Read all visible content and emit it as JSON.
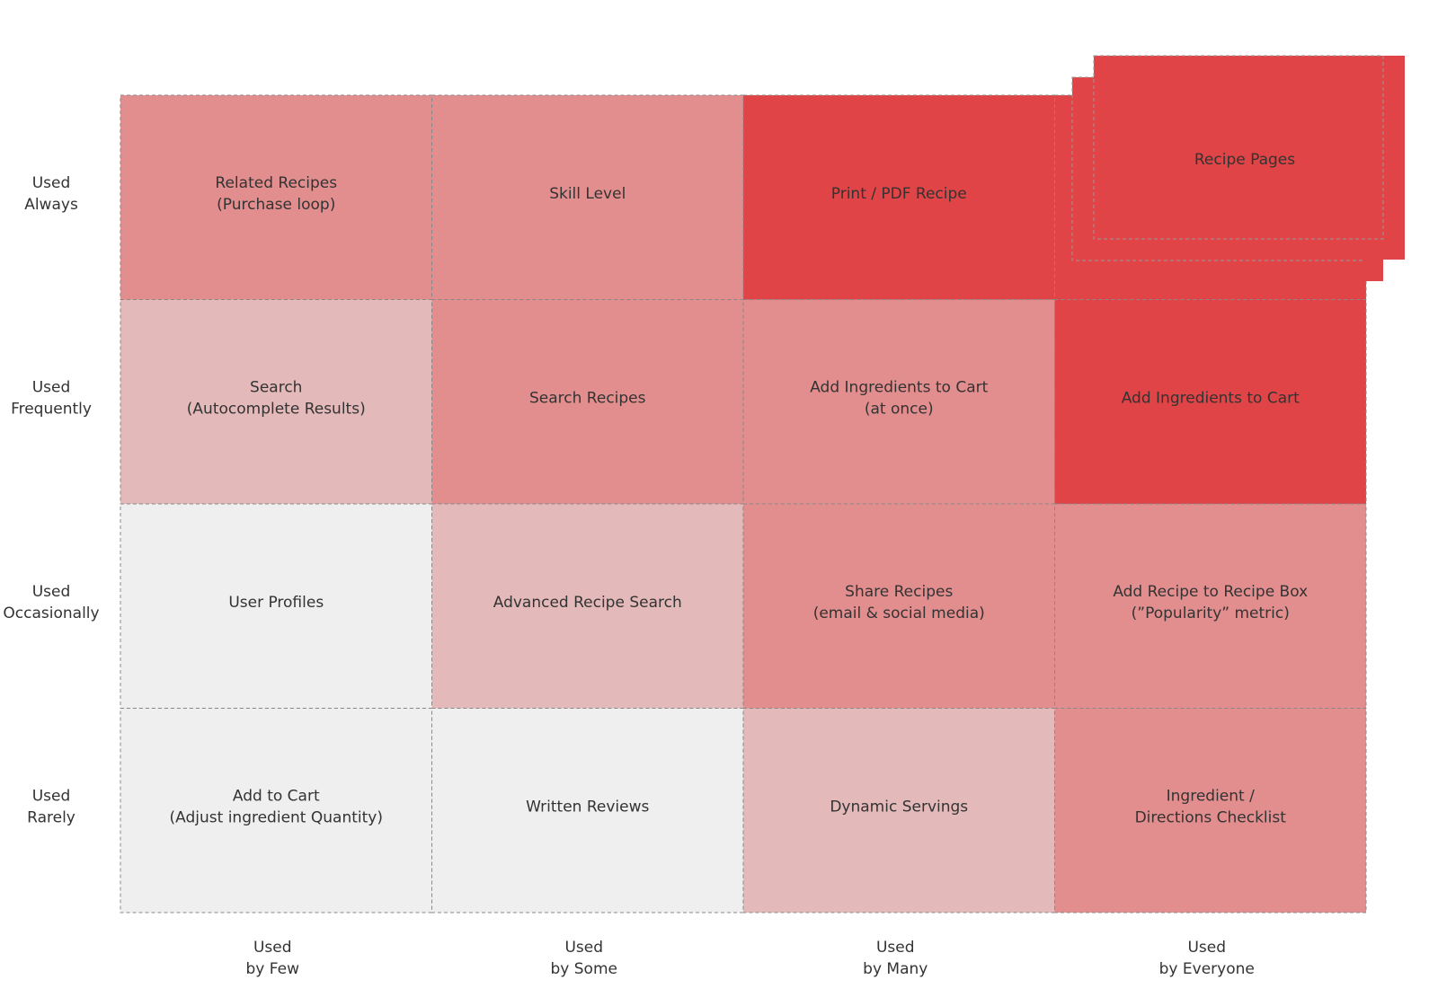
{
  "row_labels": [
    [
      "Used",
      "Always"
    ],
    [
      "Used",
      "Frequently"
    ],
    [
      "Used",
      "Occasionally"
    ],
    [
      "Used",
      "Rarely"
    ]
  ],
  "column_labels": [
    [
      "Used",
      "by Few"
    ],
    [
      "Used",
      "by Some"
    ],
    [
      "Used",
      "by Many"
    ],
    [
      "Used",
      "by Everyone"
    ]
  ],
  "cells": [
    [
      {
        "lines": [
          "Related Recipes",
          "(Purchase loop)"
        ],
        "color": "#e38e8e"
      },
      {
        "lines": [
          "Skill Level"
        ],
        "color": "#e38e8e"
      },
      {
        "lines": [
          "Print / PDF Recipe"
        ],
        "color": "#e04446"
      },
      {
        "lines": [
          "Recipe Pages"
        ],
        "color": "#e04446"
      }
    ],
    [
      {
        "lines": [
          "Search",
          "(Autocomplete Results)"
        ],
        "color": "#e4b9b9"
      },
      {
        "lines": [
          "Search Recipes"
        ],
        "color": "#e38e8e"
      },
      {
        "lines": [
          "Add Ingredients to Cart",
          "(at once)"
        ],
        "color": "#e38e8e"
      },
      {
        "lines": [
          "Add Ingredients to Cart"
        ],
        "color": "#e04446"
      }
    ],
    [
      {
        "lines": [
          "User Profiles"
        ],
        "color": "#efefef"
      },
      {
        "lines": [
          "Advanced Recipe Search"
        ],
        "color": "#e4b9b9"
      },
      {
        "lines": [
          "Share Recipes",
          "(email & social media)"
        ],
        "color": "#e38e8e"
      },
      {
        "lines": [
          "Add Recipe to Recipe Box",
          "(”Popularity” metric)"
        ],
        "color": "#e38e8e"
      }
    ],
    [
      {
        "lines": [
          "Add to Cart",
          "(Adjust ingredient Quantity)"
        ],
        "color": "#efefef"
      },
      {
        "lines": [
          "Written Reviews"
        ],
        "color": "#efefef"
      },
      {
        "lines": [
          "Dynamic Servings"
        ],
        "color": "#e4b9b9"
      },
      {
        "lines": [
          "Ingredient /",
          "Directions Checklist"
        ],
        "color": "#e38e8e"
      }
    ]
  ]
}
